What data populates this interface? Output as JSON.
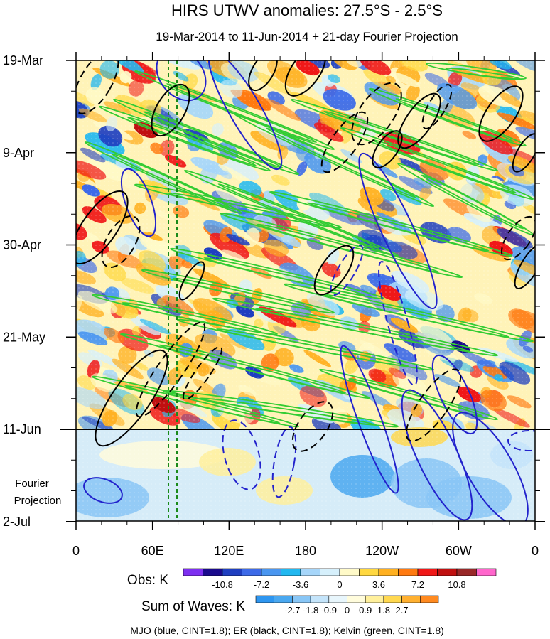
{
  "chart_data": {
    "type": "heatmap",
    "title": "HIRS UTWV anomalies: 27.5°S - 2.5°S",
    "subtitle": "19-Mar-2014 to 11-Jun-2014 + 21-day Fourier Projection",
    "x_ticks": [
      "0",
      "60E",
      "120E",
      "180",
      "120W",
      "60W",
      "0"
    ],
    "y_ticks": [
      "19-Mar",
      "9-Apr",
      "30-Apr",
      "21-May",
      "11-Jun",
      "2-Jul"
    ],
    "projection_label_line1": "Fourier",
    "projection_label_line2": "Projection",
    "obs_colorbar": {
      "label": "Obs: K",
      "tick_labels": [
        "-10.8",
        "-7.2",
        "-3.6",
        "0",
        "3.6",
        "7.2",
        "10.8"
      ],
      "colors": [
        "#7d2ff0",
        "#1a0a8c",
        "#1f3fc0",
        "#3d6ae8",
        "#4a96f0",
        "#22b8f0",
        "#a6d6fa",
        "#d6f0fc",
        "#fffac8",
        "#ffd840",
        "#ffb020",
        "#ff7a10",
        "#f01818",
        "#c01010",
        "#982828",
        "#ff66cc"
      ]
    },
    "waves_colorbar": {
      "label": "Sum of Waves: K",
      "tick_labels": [
        "-2.7",
        "-1.8",
        "-0.9",
        "0",
        "0.9",
        "1.8",
        "2.7"
      ],
      "colors": [
        "#2e96f0",
        "#4aa8f0",
        "#88c6f6",
        "#c4e4fa",
        "#e8f6fc",
        "#fffcdc",
        "#fff09c",
        "#ffd850",
        "#ffb030",
        "#ff8a20"
      ]
    },
    "footer": "MJO (blue, CINT=1.8); ER (black, CINT=1.8); Kelvin (green, CINT=1.8)",
    "series": [
      {
        "name": "MJO",
        "color": "#2222cc"
      },
      {
        "name": "ER",
        "color": "#000000"
      },
      {
        "name": "Kelvin",
        "color": "#33cc33"
      }
    ]
  }
}
